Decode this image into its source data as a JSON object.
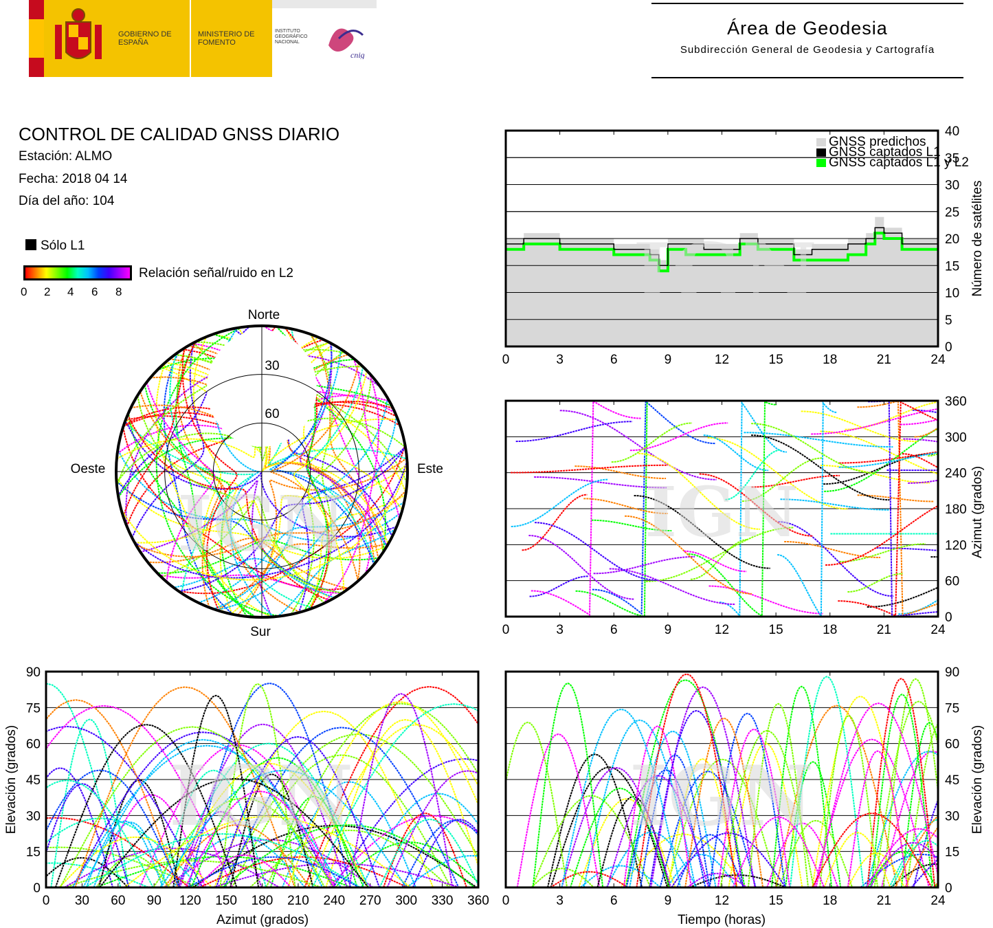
{
  "header": {
    "gobierno": "GOBIERNO DE ESPAÑA",
    "ministerio": "MINISTERIO DE FOMENTO",
    "instituto": "INSTITUTO GEOGRÁFICO NACIONAL",
    "cnig": "cnig",
    "area_title": "Área de Geodesia",
    "area_subtitle": "Subdirección General de Geodesia y Cartografía"
  },
  "info": {
    "title": "CONTROL DE CALIDAD GNSS DIARIO",
    "station": "Estación: ALMO",
    "date": "Fecha: 2018 04 14",
    "doy": "Día del año: 104",
    "solo_l1": "Sólo L1",
    "colorbar_label": "Relación señal/ruido en L2",
    "colorbar_ticks": [
      "0",
      "2",
      "4",
      "6",
      "8"
    ]
  },
  "watermark": "IGN",
  "colors": {
    "predicted": "#d8d8d8",
    "l1": "#000000",
    "l1l2": "#00ff00",
    "track_palette": [
      "#ff00ff",
      "#a000ff",
      "#4000ff",
      "#0040ff",
      "#00c0ff",
      "#00ffc0",
      "#00ff00",
      "#80ff00",
      "#ffff00",
      "#ff8000",
      "#ff0000"
    ]
  },
  "chart_data": [
    {
      "id": "sats",
      "type": "line",
      "ylabel": "Número de satélites",
      "xlim": [
        0,
        24
      ],
      "ylim": [
        0,
        40
      ],
      "xticks": [
        "0",
        "3",
        "6",
        "9",
        "12",
        "15",
        "18",
        "21",
        "24"
      ],
      "yticks": [
        "0",
        "5",
        "10",
        "15",
        "20",
        "25",
        "30",
        "35",
        "40"
      ],
      "grid": true,
      "legend": [
        "GNSS predichos",
        "GNSS captados L1",
        "GNSS captados L1 y L2"
      ],
      "legend_position": "top-right",
      "series": [
        {
          "name": "GNSS predichos",
          "x": [
            0,
            1,
            2,
            3,
            4,
            5,
            6,
            7,
            8,
            8.5,
            9,
            10,
            11,
            12,
            13,
            14,
            15,
            16,
            17,
            18,
            19,
            20,
            20.5,
            21,
            22,
            23,
            24
          ],
          "values": [
            20,
            21,
            21,
            20,
            20,
            20,
            19,
            19,
            18,
            16,
            20,
            20,
            19,
            19,
            21,
            20,
            20,
            18,
            19,
            19,
            20,
            21,
            24,
            22,
            20,
            20,
            20
          ]
        },
        {
          "name": "GNSS captados L1",
          "x": [
            0,
            1,
            2,
            3,
            4,
            5,
            6,
            7,
            8,
            8.5,
            9,
            10,
            11,
            12,
            13,
            14,
            15,
            16,
            17,
            18,
            19,
            20,
            20.5,
            21,
            22,
            23,
            24
          ],
          "values": [
            19,
            20,
            20,
            19,
            19,
            19,
            18,
            18,
            17,
            15,
            19,
            19,
            18,
            18,
            20,
            19,
            19,
            17,
            18,
            18,
            19,
            20,
            22,
            21,
            19,
            19,
            19
          ]
        },
        {
          "name": "GNSS captados L1 y L2",
          "x": [
            0,
            1,
            2,
            3,
            4,
            5,
            6,
            7,
            8,
            8.5,
            9,
            10,
            11,
            12,
            13,
            14,
            15,
            16,
            17,
            18,
            19,
            20,
            20.5,
            21,
            22,
            23,
            24
          ],
          "values": [
            18,
            19,
            19,
            18,
            18,
            18,
            17,
            17,
            16,
            14,
            18,
            17,
            17,
            17,
            19,
            18,
            18,
            16,
            16,
            16,
            17,
            19,
            21,
            20,
            18,
            18,
            18
          ]
        }
      ]
    },
    {
      "id": "polar",
      "type": "scatter",
      "cardinal": [
        "Norte",
        "Sur",
        "Este",
        "Oeste"
      ],
      "rings": [
        "30",
        "60"
      ]
    },
    {
      "id": "azimut-tiempo",
      "type": "scatter",
      "ylabel": "Azimut (grados)",
      "xlim": [
        0,
        24
      ],
      "ylim": [
        0,
        360
      ],
      "xticks": [
        "0",
        "3",
        "6",
        "9",
        "12",
        "15",
        "18",
        "21",
        "24"
      ],
      "yticks": [
        "0",
        "60",
        "120",
        "180",
        "240",
        "300",
        "360"
      ]
    },
    {
      "id": "elev-azimut",
      "type": "scatter",
      "xlabel": "Azimut (grados)",
      "ylabel": "Elevación (grados)",
      "xlim": [
        0,
        360
      ],
      "ylim": [
        0,
        90
      ],
      "xticks": [
        "0",
        "30",
        "60",
        "90",
        "120",
        "150",
        "180",
        "210",
        "240",
        "270",
        "300",
        "330",
        "360"
      ],
      "yticks": [
        "0",
        "15",
        "30",
        "45",
        "60",
        "75",
        "90"
      ]
    },
    {
      "id": "elev-tiempo",
      "type": "scatter",
      "xlabel": "Tiempo (horas)",
      "ylabel": "Elevación (grados)",
      "xlim": [
        0,
        24
      ],
      "ylim": [
        0,
        90
      ],
      "xticks": [
        "0",
        "3",
        "6",
        "9",
        "12",
        "15",
        "18",
        "21",
        "24"
      ],
      "yticks": [
        "0",
        "15",
        "30",
        "45",
        "60",
        "75",
        "90"
      ]
    }
  ]
}
